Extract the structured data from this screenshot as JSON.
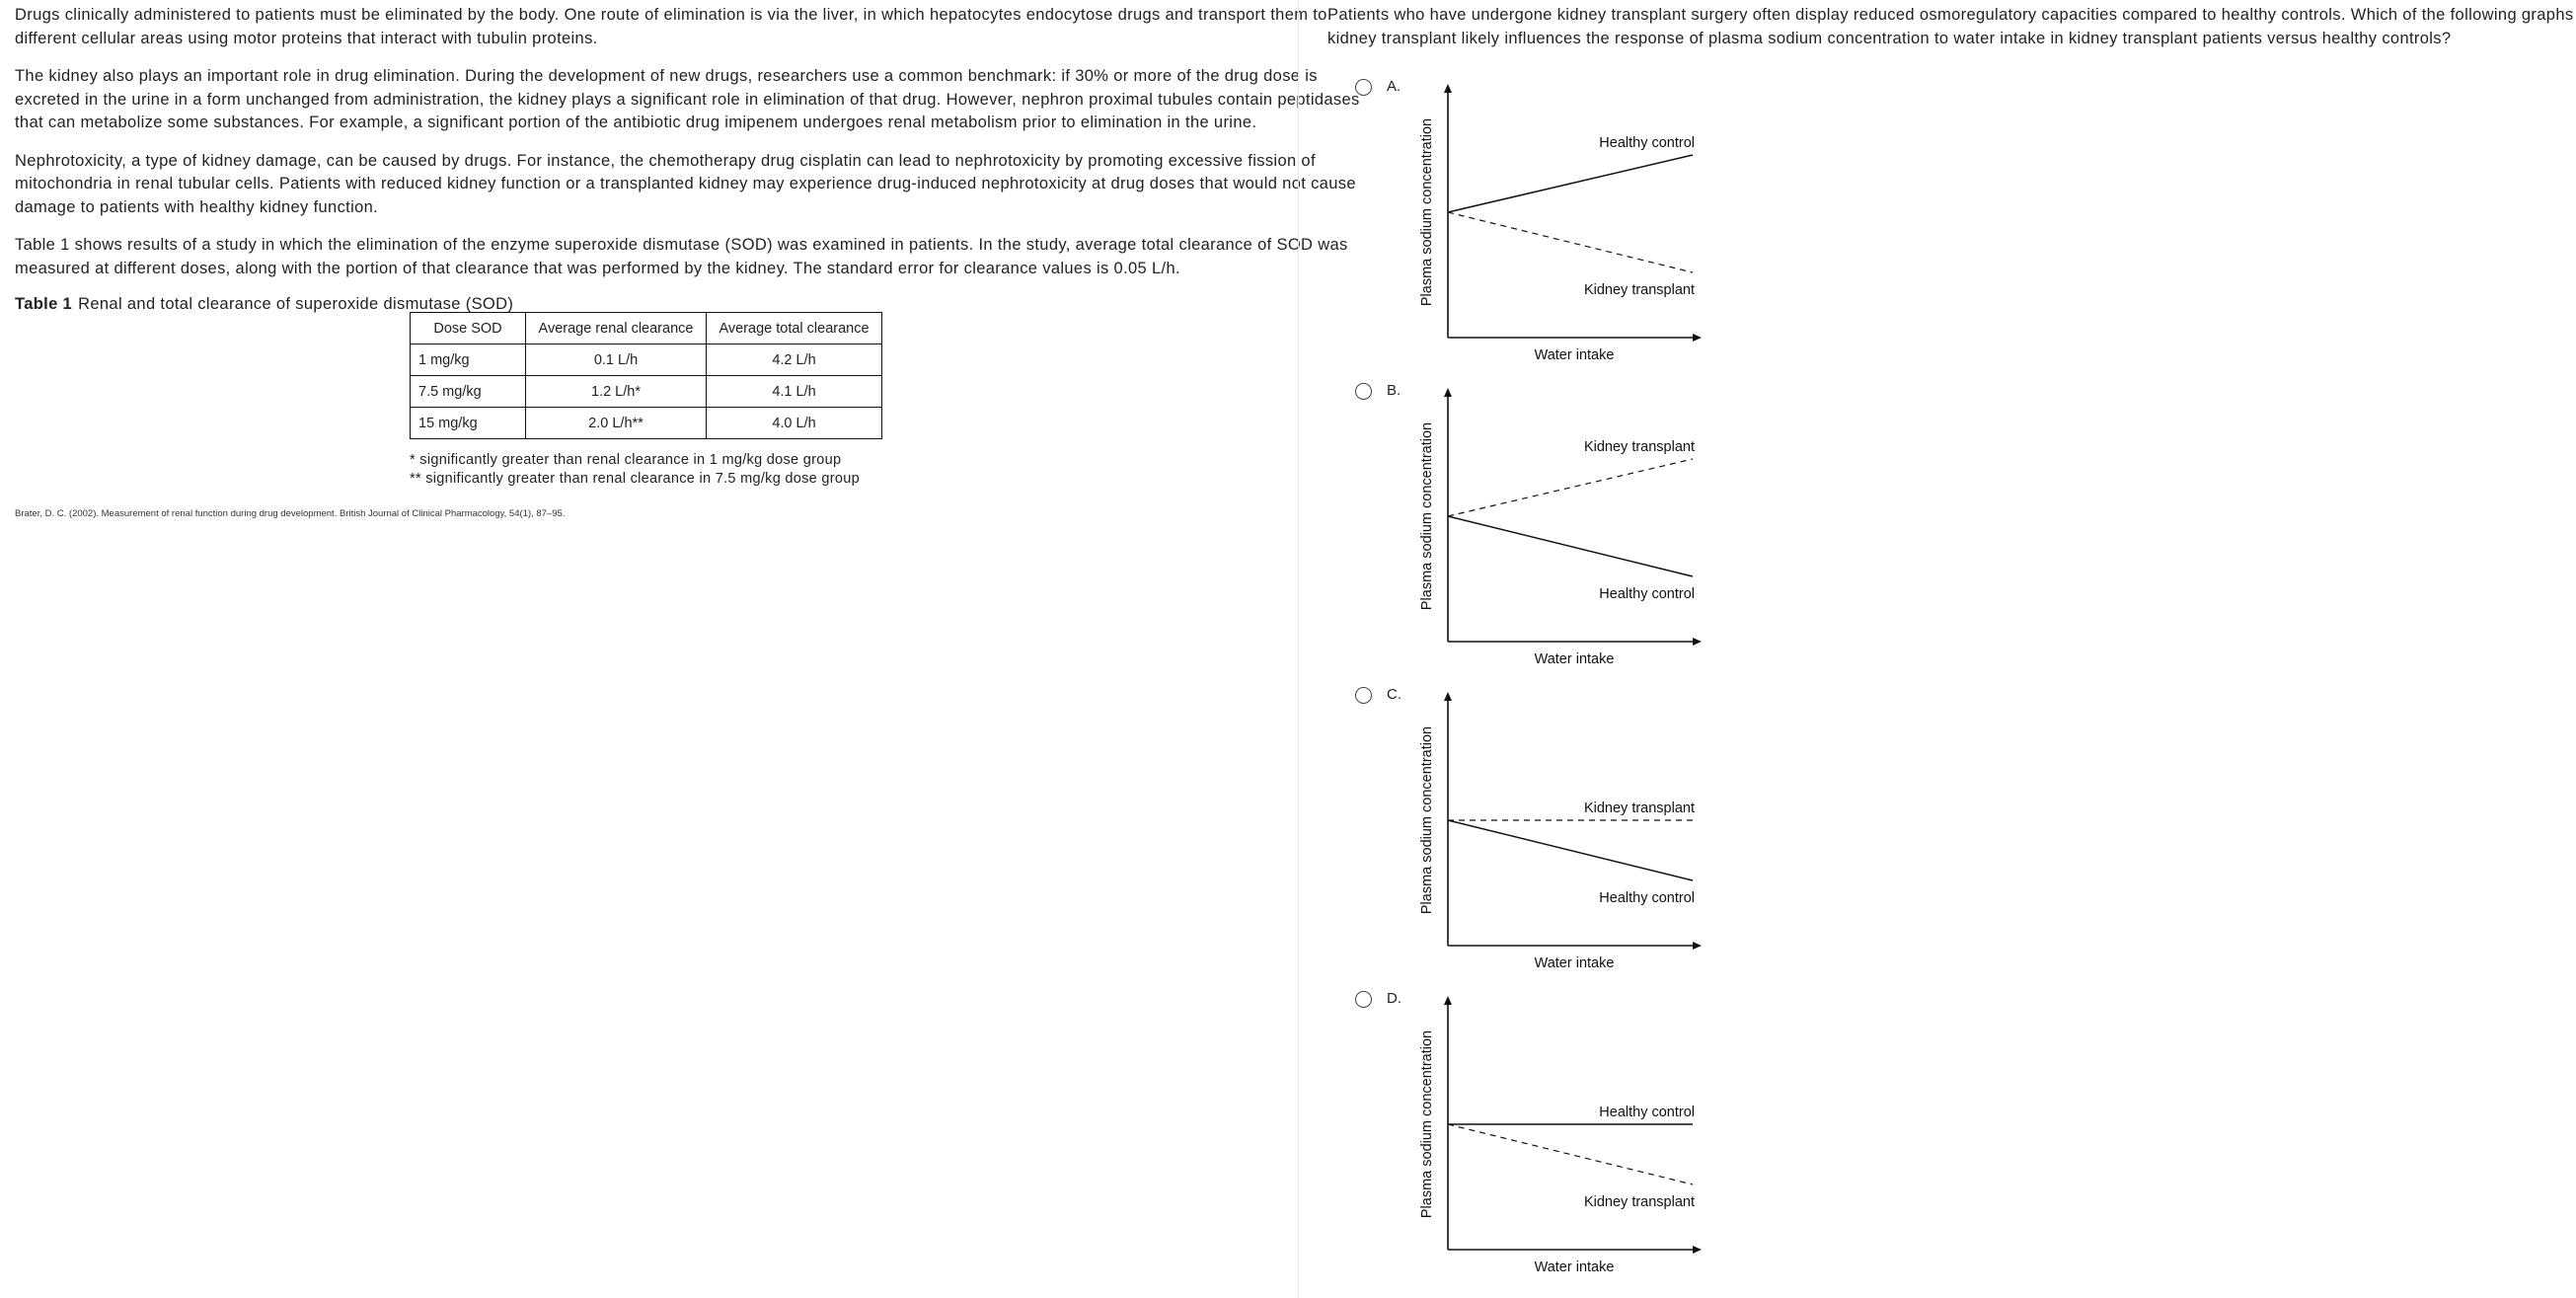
{
  "passage": {
    "paragraphs": [
      [
        "Drugs clinically administered to patients must be eliminated by the body.  One route of elimination is via the liver, in which hepatocytes endocytose drugs and transport them to",
        "different cellular areas using motor proteins that interact with tubulin proteins."
      ],
      [
        "The kidney also plays an important role in drug elimination.  During the development of new drugs, researchers use a common benchmark: if 30% or more of the drug dose is",
        "excreted in the urine in a form unchanged from administration, the kidney plays a significant role in elimination of that drug.  However, nephron proximal tubules contain peptidases",
        "that can metabolize some substances.  For example, a significant portion of the antibiotic drug imipenem undergoes renal metabolism prior to elimination in the urine."
      ],
      [
        "Nephrotoxicity, a type of kidney damage, can be caused by drugs.  For instance, the chemotherapy drug cisplatin can lead to nephrotoxicity by promoting excessive fission of",
        "mitochondria in renal tubular cells.  Patients with reduced kidney function or a transplanted kidney may experience drug-induced nephrotoxicity at drug doses that would not cause",
        "damage to patients with healthy kidney function."
      ],
      [
        "Table 1 shows results of a study in which the elimination of the enzyme superoxide dismutase (SOD) was examined in patients.  In the study, average total clearance of SOD was",
        "measured at different doses, along with the portion of that clearance that was performed by the kidney.  The standard error for clearance values is 0.05 L/h."
      ]
    ],
    "table_caption_label": "Table 1",
    "table_caption": "Renal and total clearance of superoxide dismutase (SOD)",
    "table": {
      "headers": [
        "Dose SOD",
        "Average renal clearance",
        "Average total clearance"
      ],
      "rows": [
        [
          "1 mg/kg",
          "0.1 L/h",
          "4.2 L/h"
        ],
        [
          "7.5 mg/kg",
          "1.2 L/h*",
          "4.1 L/h"
        ],
        [
          "15 mg/kg",
          "2.0 L/h**",
          "4.0 L/h"
        ]
      ]
    },
    "footnotes": [
      "* significantly greater than renal clearance in 1 mg/kg dose group",
      "** significantly greater than renal clearance in 7.5 mg/kg dose group"
    ],
    "citation": "Brater, D. C. (2002). Measurement of renal function during drug development. British Journal of Clinical Pharmacology, 54(1), 87–95."
  },
  "question": {
    "lines": [
      "Patients who have undergone kidney transplant surgery often display reduced osmoregulatory capacities compared to healthy controls.  Which of the following graphs shows how",
      "kidney transplant likely influences the response of plasma sodium concentration to water intake in kidney transplant patients versus healthy controls?"
    ],
    "options": [
      {
        "letter": "A.",
        "selected": false
      },
      {
        "letter": "B.",
        "selected": false
      },
      {
        "letter": "C.",
        "selected": false
      },
      {
        "letter": "D.",
        "selected": false
      }
    ]
  },
  "chart_data": [
    {
      "type": "line",
      "xlabel": "Water intake",
      "ylabel": "Plasma sodium concentration",
      "series": [
        {
          "name": "Healthy control",
          "trend": "increasing",
          "style": "solid"
        },
        {
          "name": "Kidney transplant",
          "trend": "decreasing",
          "style": "dashed"
        }
      ]
    },
    {
      "type": "line",
      "xlabel": "Water intake",
      "ylabel": "Plasma sodium concentration",
      "series": [
        {
          "name": "Kidney transplant",
          "trend": "increasing",
          "style": "dashed"
        },
        {
          "name": "Healthy control",
          "trend": "decreasing",
          "style": "solid"
        }
      ]
    },
    {
      "type": "line",
      "xlabel": "Water intake",
      "ylabel": "Plasma sodium concentration",
      "series": [
        {
          "name": "Kidney transplant",
          "trend": "flat",
          "style": "dashed"
        },
        {
          "name": "Healthy control",
          "trend": "decreasing",
          "style": "solid"
        }
      ]
    },
    {
      "type": "line",
      "xlabel": "Water intake",
      "ylabel": "Plasma sodium concentration",
      "series": [
        {
          "name": "Healthy control",
          "trend": "flat",
          "style": "solid"
        },
        {
          "name": "Kidney transplant",
          "trend": "decreasing",
          "style": "dashed"
        }
      ]
    }
  ]
}
